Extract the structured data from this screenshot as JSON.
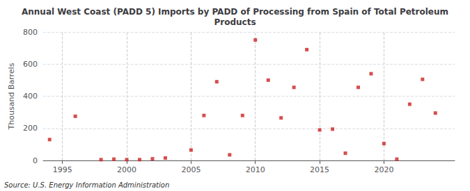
{
  "chart_data": {
    "type": "scatter",
    "title": "Annual West Coast (PADD 5) Imports by PADD of Processing from Spain of Total Petroleum\nProducts",
    "ylabel": "Thousand Barrels",
    "annotations": [
      "Source: U.S. Energy Information Administration"
    ],
    "x": [
      1994,
      1996,
      1998,
      1999,
      2000,
      2001,
      2002,
      2003,
      2005,
      2006,
      2007,
      2008,
      2009,
      2010,
      2011,
      2012,
      2013,
      2014,
      2015,
      2016,
      2017,
      2018,
      2019,
      2020,
      2021,
      2022,
      2023,
      2024
    ],
    "values": [
      130,
      275,
      5,
      8,
      5,
      5,
      10,
      15,
      65,
      280,
      490,
      35,
      280,
      750,
      500,
      265,
      455,
      690,
      190,
      195,
      45,
      455,
      540,
      105,
      8,
      350,
      505,
      295
    ],
    "color": "#cc2222",
    "marker": "square",
    "xlim": [
      1993.5,
      2025.5
    ],
    "xticks": [
      1995,
      2000,
      2005,
      2010,
      2015,
      2020
    ],
    "ylim": [
      0,
      800
    ],
    "yticks": [
      0,
      200,
      400,
      600,
      800
    ],
    "grid": true
  }
}
